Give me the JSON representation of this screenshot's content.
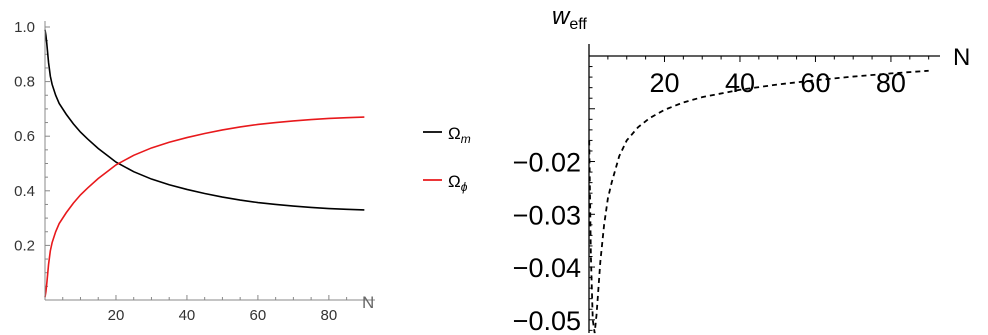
{
  "chart_data": [
    {
      "type": "line",
      "xlabel": "N",
      "ylabel": "",
      "xlim": [
        0,
        93
      ],
      "ylim": [
        0,
        1.0
      ],
      "x_ticks": [
        20,
        40,
        60,
        80
      ],
      "y_ticks": [
        0.2,
        0.4,
        0.6,
        0.8,
        1.0
      ],
      "x_tick_labels": [
        "20",
        "40",
        "60",
        "80"
      ],
      "y_tick_labels": [
        "0.2",
        "0.4",
        "0.6",
        "0.8",
        "1.0"
      ],
      "grid": false,
      "legend_position": "right",
      "series": [
        {
          "name": "Ω_m",
          "label_main": "Ω",
          "label_sub": "m",
          "color": "#000000",
          "style": "solid",
          "x": [
            0,
            0.25,
            0.5,
            1,
            1.5,
            2,
            3,
            4,
            6,
            8,
            10,
            12,
            15,
            18,
            20,
            25,
            30,
            35,
            40,
            45,
            50,
            55,
            60,
            65,
            70,
            75,
            80,
            85,
            90
          ],
          "y": [
            0.99,
            0.97,
            0.94,
            0.87,
            0.82,
            0.79,
            0.75,
            0.72,
            0.68,
            0.645,
            0.615,
            0.59,
            0.555,
            0.525,
            0.505,
            0.47,
            0.443,
            0.422,
            0.405,
            0.39,
            0.377,
            0.366,
            0.357,
            0.35,
            0.344,
            0.339,
            0.335,
            0.332,
            0.33
          ]
        },
        {
          "name": "Ω_ϕ",
          "label_main": "Ω",
          "label_sub": "ϕ",
          "color": "#e8191c",
          "style": "solid",
          "x": [
            0,
            0.25,
            0.5,
            1,
            1.5,
            2,
            3,
            4,
            6,
            8,
            10,
            12,
            15,
            18,
            20,
            25,
            30,
            35,
            40,
            45,
            50,
            55,
            60,
            65,
            70,
            75,
            80,
            85,
            90
          ],
          "y": [
            0.01,
            0.03,
            0.06,
            0.13,
            0.18,
            0.21,
            0.25,
            0.28,
            0.32,
            0.355,
            0.385,
            0.41,
            0.445,
            0.475,
            0.495,
            0.53,
            0.557,
            0.578,
            0.595,
            0.61,
            0.623,
            0.634,
            0.643,
            0.65,
            0.656,
            0.661,
            0.665,
            0.668,
            0.67
          ]
        }
      ]
    },
    {
      "type": "line",
      "title": "w",
      "title_sub": "eff",
      "xlabel": "N",
      "ylabel": "",
      "xlim": [
        0,
        93
      ],
      "ylim": [
        -0.0525,
        0
      ],
      "x_ticks": [
        20,
        40,
        60,
        80
      ],
      "y_ticks": [
        -0.02,
        -0.03,
        -0.04,
        -0.05
      ],
      "x_tick_labels": [
        "20",
        "40",
        "60",
        "80"
      ],
      "y_tick_labels": [
        "−0.02",
        "−0.03",
        "−0.04",
        "−0.05"
      ],
      "grid": false,
      "series": [
        {
          "color": "#000000",
          "style": "dashed",
          "x": [
            0.05,
            0.5,
            1,
            1.5,
            2,
            2.5,
            3,
            4,
            5,
            6,
            8,
            10,
            13,
            16,
            20,
            25,
            30,
            40,
            50,
            60,
            70,
            80,
            90
          ],
          "y": [
            -0.016,
            -0.038,
            -0.05,
            -0.0525,
            -0.049,
            -0.044,
            -0.039,
            -0.032,
            -0.027,
            -0.024,
            -0.019,
            -0.016,
            -0.0135,
            -0.0118,
            -0.0102,
            -0.0088,
            -0.0078,
            -0.0064,
            -0.0054,
            -0.0046,
            -0.0039,
            -0.0033,
            -0.0028
          ]
        }
      ]
    }
  ]
}
